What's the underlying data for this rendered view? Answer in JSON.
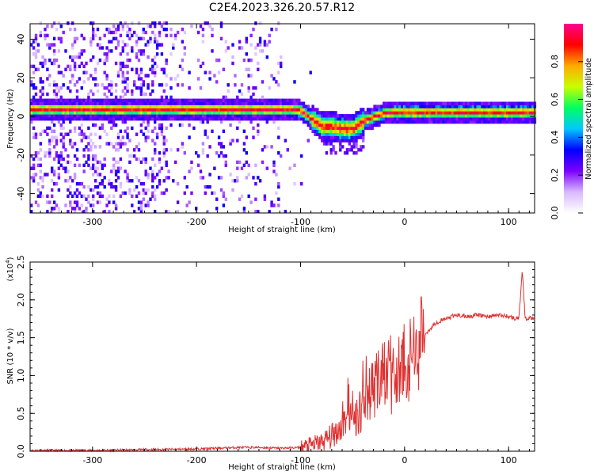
{
  "title": "C2E4.2023.326.20.57.R12",
  "chart_data": [
    {
      "type": "heatmap",
      "xlabel": "Height of straight line (km)",
      "ylabel": "Frequency (Hz)",
      "xlim": [
        -360,
        125
      ],
      "ylim": [
        -50,
        48
      ],
      "xticks": [
        -300,
        -200,
        -100,
        0,
        100
      ],
      "yticks": [
        -40,
        -20,
        0,
        20,
        40
      ],
      "colorbar": {
        "label": "Normalized spectral amplitude",
        "range": [
          0,
          1
        ],
        "ticks": [
          "0.0",
          "0.2",
          "0.4",
          "0.6",
          "0.8"
        ],
        "colormap": [
          "#ffffff",
          "#d9b8ff",
          "#7a00ff",
          "#0000ff",
          "#00c8ff",
          "#00ff60",
          "#c8ff00",
          "#ffaa00",
          "#ff0000",
          "#ff0090"
        ]
      },
      "ridge": {
        "x": [
          -360,
          -320,
          -280,
          -240,
          -200,
          -160,
          -130,
          -110,
          -100,
          -90,
          -80,
          -70,
          -60,
          -50,
          -45,
          -40,
          -30,
          -20,
          -10,
          0,
          20,
          50,
          80,
          100,
          125
        ],
        "y": [
          3,
          3,
          3,
          3,
          3,
          3,
          3,
          3,
          2,
          -2,
          -6,
          -6,
          -7,
          -7,
          -5,
          -3,
          -1,
          1,
          1.5,
          1.5,
          1.5,
          1.5,
          1.5,
          1.5,
          1.5
        ]
      }
    },
    {
      "type": "line",
      "xlabel": "Height of straight line (km)",
      "ylabel": "SNR (10 * v/v)",
      "scale_label": "(x10",
      "scale_exp": "4",
      "scale_close": ")",
      "xlim": [
        -360,
        125
      ],
      "ylim": [
        0,
        2.5
      ],
      "xticks": [
        -300,
        -200,
        -100,
        0,
        100
      ],
      "yticks": [
        "0.0",
        "0.5",
        "1.0",
        "1.5",
        "2.0",
        "2.5"
      ],
      "series": [
        {
          "color": "#e03030",
          "x": [
            -360,
            -300,
            -250,
            -200,
            -160,
            -140,
            -120,
            -100,
            -90,
            -80,
            -70,
            -60,
            -50,
            -40,
            -30,
            -20,
            -15,
            -10,
            -5,
            0,
            10,
            20,
            30,
            40,
            50,
            60,
            70,
            80,
            90,
            100,
            105,
            110,
            113,
            116,
            120,
            125
          ],
          "y": [
            0.01,
            0.01,
            0.02,
            0.03,
            0.05,
            0.05,
            0.04,
            0.05,
            0.08,
            0.12,
            0.2,
            0.35,
            0.4,
            0.6,
            0.8,
            0.95,
            1.1,
            0.9,
            1.0,
            1.05,
            1.25,
            1.55,
            1.7,
            1.75,
            1.8,
            1.78,
            1.8,
            1.78,
            1.8,
            1.78,
            1.76,
            1.75,
            2.4,
            1.75,
            1.76,
            1.77
          ]
        }
      ]
    }
  ]
}
